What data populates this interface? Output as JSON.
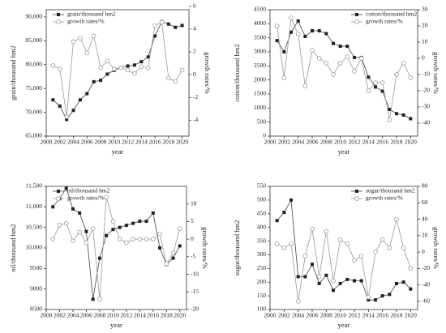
{
  "chart_data": [
    {
      "type": "line",
      "xlabel": "year",
      "ylabel": "grain/thousand hm2",
      "y2label": "growth rates/%",
      "legend": "upper left",
      "x": [
        2001,
        2002,
        2003,
        2004,
        2005,
        2006,
        2007,
        2008,
        2009,
        2010,
        2011,
        2012,
        2013,
        2014,
        2015,
        2016,
        2017,
        2018,
        2019,
        2020
      ],
      "xlim": [
        2000,
        2021
      ],
      "xticks": [
        2000,
        2002,
        2004,
        2006,
        2008,
        2010,
        2012,
        2014,
        2016,
        2018,
        2020
      ],
      "ylim": [
        65000,
        91500
      ],
      "yticks": [
        {
          "value": 65000,
          "label": "65,000"
        },
        {
          "value": 70000,
          "label": "70,000"
        },
        {
          "value": 75000,
          "label": "75,000"
        },
        {
          "value": 80000,
          "label": "80,000"
        },
        {
          "value": 85000,
          "label": "85,000"
        },
        {
          "value": 90000,
          "label": "90,000"
        }
      ],
      "y2lim": [
        -5.4,
        5.7
      ],
      "y2ticks": [
        -4,
        -2,
        0,
        2,
        4,
        6
      ],
      "series": [
        {
          "name": "grain/thousand hm2",
          "color": "#444444",
          "marker": "square",
          "values": [
            72600,
            71300,
            68500,
            70400,
            72600,
            73900,
            76400,
            76700,
            78000,
            78800,
            79400,
            79700,
            79900,
            80600,
            81600,
            86000,
            89000,
            88500,
            87800,
            88200
          ]
        },
        {
          "name": "growth rates/%",
          "color": "#999999",
          "marker": "circle",
          "axis": "y2",
          "values": [
            0.8,
            0.5,
            -3.7,
            2.9,
            3.2,
            1.9,
            3.4,
            0.6,
            1.2,
            0.5,
            0.6,
            0.4,
            0.1,
            0.7,
            0.6,
            4.3,
            4.6,
            -0.3,
            -0.6,
            0.4
          ]
        }
      ]
    },
    {
      "type": "line",
      "xlabel": "year",
      "ylabel": "cotton/thousand hm2",
      "y2label": "growth rates/%",
      "legend": "upper right",
      "x": [
        2001,
        2002,
        2003,
        2004,
        2005,
        2006,
        2007,
        2008,
        2009,
        2010,
        2011,
        2012,
        2013,
        2014,
        2015,
        2016,
        2017,
        2018,
        2019,
        2020
      ],
      "xlim": [
        2000,
        2021
      ],
      "xticks": [
        2000,
        2002,
        2004,
        2006,
        2008,
        2010,
        2012,
        2014,
        2016,
        2018,
        2020
      ],
      "ylim": [
        0,
        4500
      ],
      "yticks": [
        0,
        500,
        1000,
        1500,
        2000,
        2500,
        3000,
        3500,
        4000,
        4500
      ],
      "y2lim": [
        -48,
        30
      ],
      "y2ticks": [
        -40,
        -30,
        -20,
        -10,
        0,
        10,
        20,
        30
      ],
      "series": [
        {
          "name": "cotton/thousand hm2",
          "color": "#444444",
          "marker": "square",
          "values": [
            3400,
            3000,
            3700,
            4100,
            3550,
            3750,
            3750,
            3650,
            3300,
            3200,
            3200,
            2800,
            2800,
            2100,
            1750,
            1600,
            950,
            800,
            750,
            620
          ]
        },
        {
          "name": "growth rates/%",
          "color": "#999999",
          "marker": "circle",
          "axis": "y2",
          "values": [
            20,
            -12,
            25,
            15,
            -17,
            5,
            0,
            -3,
            -10,
            -3,
            1,
            -8,
            0,
            -20,
            -15,
            -15,
            -38,
            -10,
            -3,
            -12
          ]
        }
      ]
    },
    {
      "type": "line",
      "xlabel": "year",
      "ylabel": "oil/thousand hm2",
      "y2label": "growth rates/%",
      "legend": "upper left",
      "x": [
        2001,
        2002,
        2003,
        2004,
        2005,
        2006,
        2007,
        2008,
        2009,
        2010,
        2011,
        2012,
        2013,
        2014,
        2015,
        2016,
        2017,
        2018,
        2019,
        2020
      ],
      "xlim": [
        2000,
        2021
      ],
      "xticks": [
        2000,
        2002,
        2004,
        2006,
        2008,
        2010,
        2012,
        2014,
        2016,
        2018,
        2020
      ],
      "ylim": [
        8500,
        11500
      ],
      "yticks": [
        8500,
        9000,
        9500,
        {
          "value": 10000,
          "label": "10,000"
        },
        {
          "value": 10500,
          "label": "10,500"
        },
        {
          "value": 11000,
          "label": "11,000"
        },
        {
          "value": 11500,
          "label": "11,500"
        }
      ],
      "y2lim": [
        -20,
        15
      ],
      "y2ticks": [
        -20,
        -15,
        -10,
        -5,
        0,
        5,
        10
      ],
      "series": [
        {
          "name": "oil/thousand hm2",
          "color": "#444444",
          "marker": "square",
          "values": [
            11000,
            11200,
            11450,
            10950,
            10850,
            10400,
            8750,
            9750,
            10300,
            10450,
            10500,
            10550,
            10600,
            10650,
            10650,
            10850,
            10000,
            9600,
            9750,
            10050
          ]
        },
        {
          "name": "growth rates/%",
          "color": "#999999",
          "marker": "circle",
          "axis": "y2",
          "values": [
            0,
            4,
            4.5,
            -0.5,
            2,
            -1,
            3,
            -17,
            12,
            5,
            0,
            -1,
            0,
            0,
            0,
            0,
            1.5,
            -7,
            -4,
            3
          ]
        }
      ]
    },
    {
      "type": "line",
      "xlabel": "year",
      "ylabel": "sugar/thousand hm2",
      "y2label": "growth rates/%",
      "legend": "upper right",
      "x": [
        2001,
        2002,
        2003,
        2004,
        2005,
        2006,
        2007,
        2008,
        2009,
        2010,
        2011,
        2012,
        2013,
        2014,
        2015,
        2016,
        2017,
        2018,
        2019,
        2020
      ],
      "xlim": [
        2000,
        2021
      ],
      "xticks": [
        2000,
        2002,
        2004,
        2006,
        2008,
        2010,
        2012,
        2014,
        2016,
        2018,
        2020
      ],
      "ylim": [
        100,
        550
      ],
      "yticks": [
        100,
        150,
        200,
        250,
        300,
        350,
        400,
        450,
        500,
        550
      ],
      "y2lim": [
        -70,
        80
      ],
      "y2ticks": [
        -60,
        -40,
        -20,
        0,
        20,
        40,
        60,
        80
      ],
      "series": [
        {
          "name": "sugar/thousand hm2",
          "color": "#444444",
          "marker": "square",
          "values": [
            425,
            455,
            500,
            220,
            220,
            265,
            195,
            225,
            170,
            195,
            210,
            205,
            205,
            135,
            135,
            150,
            155,
            195,
            200,
            175
          ]
        },
        {
          "name": "growth rates/%",
          "color": "#999999",
          "marker": "circle",
          "axis": "y2",
          "values": [
            10,
            5,
            10,
            -60,
            -5,
            28,
            -30,
            25,
            -35,
            15,
            10,
            -10,
            -5,
            -55,
            0,
            15,
            5,
            40,
            5,
            -20
          ]
        }
      ]
    }
  ]
}
